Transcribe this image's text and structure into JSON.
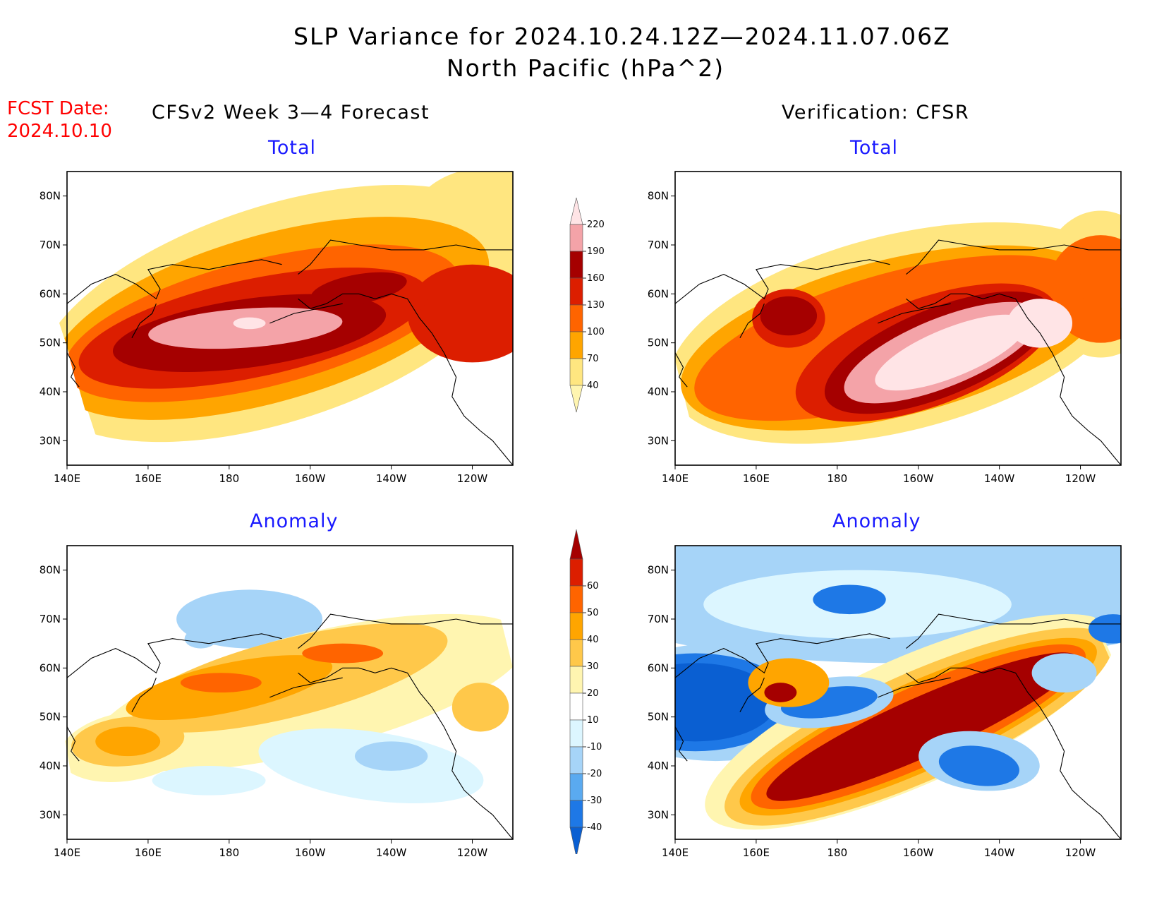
{
  "title": {
    "line1": "SLP Variance for 2024.10.24.12Z—2024.11.07.06Z",
    "line2": "North Pacific (hPa^2)"
  },
  "fcst": {
    "line1": "FCST Date:",
    "line2": "2024.10.10"
  },
  "columns": {
    "left": "CFSv2 Week 3—4 Forecast",
    "right": "Verification: CFSR"
  },
  "panel_titles": {
    "total": "Total",
    "anomaly": "Anomaly"
  },
  "axes": {
    "lon_ticks": [
      "140E",
      "160E",
      "180",
      "160W",
      "140W",
      "120W"
    ],
    "lat_ticks": [
      "80N",
      "70N",
      "60N",
      "50N",
      "40N",
      "30N"
    ]
  },
  "colorbars": {
    "total": {
      "labels": [
        "40",
        "70",
        "100",
        "130",
        "160",
        "190",
        "220"
      ],
      "colors": [
        "#fff5b0",
        "#ffe680",
        "#ffa500",
        "#ff6400",
        "#dc1e00",
        "#a50000",
        "#f4a3a8",
        "#ffe4e6"
      ]
    },
    "anomaly": {
      "labels": [
        "-40",
        "-30",
        "-20",
        "-10",
        "10",
        "20",
        "30",
        "40",
        "50",
        "60"
      ],
      "colors": [
        "#0a5fd2",
        "#1e78e6",
        "#5aaaf0",
        "#a6d4f8",
        "#dcf6ff",
        "#ffffff",
        "#fff5b0",
        "#ffc84a",
        "#ffa500",
        "#ff6400",
        "#dc1e00",
        "#a50000"
      ]
    }
  },
  "chart_data": [
    {
      "type": "heatmap",
      "name": "CFSv2 Week 3—4 Forecast — Total",
      "units": "hPa^2",
      "xlim": [
        140,
        250
      ],
      "ylim": [
        25,
        85
      ],
      "levels": [
        40,
        70,
        100,
        130,
        160,
        190,
        220
      ],
      "features": [
        {
          "lon": 185,
          "lat": 52,
          "peak": 195
        },
        {
          "lon": 210,
          "lat": 59,
          "peak": 140
        },
        {
          "lon": 232,
          "lat": 53,
          "peak": 110
        }
      ]
    },
    {
      "type": "heatmap",
      "name": "Verification: CFSR — Total",
      "units": "hPa^2",
      "xlim": [
        140,
        250
      ],
      "ylim": [
        25,
        85
      ],
      "levels": [
        40,
        70,
        100,
        130,
        160,
        190,
        220
      ],
      "features": [
        {
          "lon": 205,
          "lat": 48,
          "peak": 225
        },
        {
          "lon": 168,
          "lat": 55,
          "peak": 200
        },
        {
          "lon": 245,
          "lat": 60,
          "peak": 110
        }
      ]
    },
    {
      "type": "heatmap",
      "name": "CFSv2 Week 3—4 Forecast — Anomaly",
      "units": "hPa^2",
      "xlim": [
        140,
        250
      ],
      "ylim": [
        25,
        85
      ],
      "levels": [
        -40,
        -30,
        -20,
        -10,
        10,
        20,
        30,
        40,
        50,
        60
      ],
      "features": [
        {
          "lon": 178,
          "lat": 56,
          "peak": 45
        },
        {
          "lon": 155,
          "lat": 45,
          "peak": 40
        },
        {
          "lon": 207,
          "lat": 63,
          "peak": 35
        },
        {
          "lon": 220,
          "lat": 42,
          "peak": -20
        }
      ]
    },
    {
      "type": "heatmap",
      "name": "Verification: CFSR — Anomaly",
      "units": "hPa^2",
      "xlim": [
        140,
        250
      ],
      "ylim": [
        25,
        85
      ],
      "levels": [
        -40,
        -30,
        -20,
        -10,
        10,
        20,
        30,
        40,
        50,
        60
      ],
      "features": [
        {
          "lon": 200,
          "lat": 48,
          "peak": 75
        },
        {
          "lon": 145,
          "lat": 53,
          "peak": -40
        },
        {
          "lon": 178,
          "lat": 53,
          "peak": -35
        },
        {
          "lon": 215,
          "lat": 40,
          "peak": -35
        },
        {
          "lon": 168,
          "lat": 57,
          "peak": 55
        },
        {
          "lon": 182,
          "lat": 74,
          "peak": -30
        }
      ]
    }
  ]
}
